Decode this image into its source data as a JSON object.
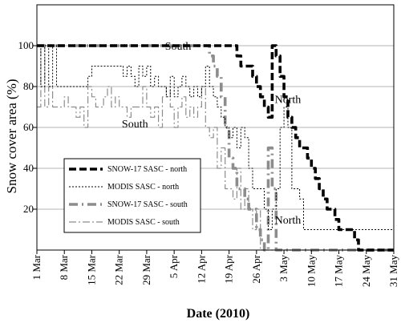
{
  "chart_data": {
    "type": "line",
    "xlabel": "Date (2010)",
    "ylabel": "Snow cover area (%)",
    "ylim": [
      0,
      120
    ],
    "yticks": [
      20,
      40,
      60,
      80,
      100
    ],
    "xlim": [
      "2010-03-01",
      "2010-05-31"
    ],
    "xticks": [
      "1 Mar",
      "8 Mar",
      "15 Mar",
      "22 Mar",
      "29 Mar",
      "5 Apr",
      "12 Apr",
      "19 Apr",
      "26 Apr",
      "3 May",
      "10 May",
      "17 May",
      "24 May",
      "31 May"
    ],
    "grid": "horizontal",
    "legend_position": "center-left",
    "annotations": [
      {
        "text": "South",
        "x": "2010-04-06",
        "y": 98
      },
      {
        "text": "South",
        "x": "2010-03-26",
        "y": 60
      },
      {
        "text": "North",
        "x": "2010-05-04",
        "y": 72
      },
      {
        "text": "North",
        "x": "2010-05-04",
        "y": 13
      }
    ],
    "series": [
      {
        "name": "SNOW-17 SASC - north",
        "color": "#000000",
        "x": [
          "2010-03-01",
          "2010-04-20",
          "2010-04-21",
          "2010-04-22",
          "2010-04-23",
          "2010-04-24",
          "2010-04-25",
          "2010-04-26",
          "2010-04-27",
          "2010-04-28",
          "2010-04-29",
          "2010-04-30",
          "2010-05-01",
          "2010-05-02",
          "2010-05-03",
          "2010-05-04",
          "2010-05-05",
          "2010-05-06",
          "2010-05-07",
          "2010-05-08",
          "2010-05-09",
          "2010-05-10",
          "2010-05-11",
          "2010-05-12",
          "2010-05-13",
          "2010-05-14",
          "2010-05-15",
          "2010-05-16",
          "2010-05-17",
          "2010-05-18",
          "2010-05-20",
          "2010-05-21",
          "2010-05-22",
          "2010-05-31"
        ],
        "y": [
          100,
          100,
          95,
          90,
          90,
          90,
          85,
          80,
          75,
          70,
          65,
          100,
          95,
          85,
          75,
          65,
          60,
          55,
          50,
          50,
          45,
          40,
          35,
          30,
          25,
          20,
          20,
          15,
          10,
          10,
          10,
          5,
          0,
          0
        ]
      },
      {
        "name": "MODIS SASC - north",
        "color": "#000000",
        "x": [
          "2010-03-01",
          "2010-03-02",
          "2010-03-03",
          "2010-03-04",
          "2010-03-05",
          "2010-03-06",
          "2010-03-12",
          "2010-03-13",
          "2010-03-14",
          "2010-03-15",
          "2010-03-16",
          "2010-03-22",
          "2010-03-23",
          "2010-03-24",
          "2010-03-25",
          "2010-03-26",
          "2010-03-27",
          "2010-03-28",
          "2010-03-29",
          "2010-03-30",
          "2010-03-31",
          "2010-04-01",
          "2010-04-02",
          "2010-04-03",
          "2010-04-04",
          "2010-04-05",
          "2010-04-06",
          "2010-04-07",
          "2010-04-08",
          "2010-04-09",
          "2010-04-10",
          "2010-04-11",
          "2010-04-12",
          "2010-04-13",
          "2010-04-14",
          "2010-04-15",
          "2010-04-16",
          "2010-04-17",
          "2010-04-18",
          "2010-04-19",
          "2010-04-20",
          "2010-04-21",
          "2010-04-22",
          "2010-04-23",
          "2010-04-24",
          "2010-04-25",
          "2010-04-26",
          "2010-04-27",
          "2010-04-28",
          "2010-04-29",
          "2010-04-30",
          "2010-05-01",
          "2010-05-02",
          "2010-05-03",
          "2010-05-04",
          "2010-05-05",
          "2010-05-06",
          "2010-05-07",
          "2010-05-08",
          "2010-05-09",
          "2010-05-10",
          "2010-05-11",
          "2010-05-12",
          "2010-05-13",
          "2010-05-14",
          "2010-05-15",
          "2010-05-16",
          "2010-05-17",
          "2010-05-31"
        ],
        "y": [
          100,
          80,
          100,
          80,
          100,
          80,
          80,
          80,
          85,
          90,
          90,
          90,
          85,
          90,
          85,
          80,
          90,
          85,
          90,
          80,
          85,
          80,
          80,
          75,
          85,
          75,
          80,
          85,
          80,
          75,
          80,
          75,
          80,
          90,
          80,
          75,
          70,
          65,
          60,
          55,
          60,
          50,
          60,
          55,
          40,
          30,
          30,
          30,
          20,
          10,
          20,
          30,
          60,
          70,
          60,
          30,
          30,
          25,
          10,
          10,
          10,
          10,
          10,
          10,
          10,
          10,
          10,
          10,
          10
        ]
      },
      {
        "name": "SNOW-17 SASC - south",
        "color": "#8c8c8c",
        "x": [
          "2010-03-01",
          "2010-04-12",
          "2010-04-13",
          "2010-04-14",
          "2010-04-15",
          "2010-04-16",
          "2010-04-17",
          "2010-04-18",
          "2010-04-19",
          "2010-04-20",
          "2010-04-21",
          "2010-04-22",
          "2010-04-23",
          "2010-04-24",
          "2010-04-25",
          "2010-04-26",
          "2010-04-27",
          "2010-04-28",
          "2010-04-29",
          "2010-04-30",
          "2010-05-01",
          "2010-05-02",
          "2010-05-03",
          "2010-05-04",
          "2010-05-31"
        ],
        "y": [
          100,
          100,
          100,
          95,
          90,
          85,
          75,
          60,
          45,
          40,
          30,
          30,
          25,
          20,
          20,
          10,
          5,
          0,
          50,
          30,
          0,
          0,
          0,
          0,
          0
        ]
      },
      {
        "name": "MODIS SASC - south",
        "color": "#8c8c8c",
        "x": [
          "2010-03-01",
          "2010-03-02",
          "2010-03-03",
          "2010-03-04",
          "2010-03-05",
          "2010-03-06",
          "2010-03-07",
          "2010-03-08",
          "2010-03-09",
          "2010-03-10",
          "2010-03-11",
          "2010-03-12",
          "2010-03-13",
          "2010-03-14",
          "2010-03-15",
          "2010-03-16",
          "2010-03-17",
          "2010-03-18",
          "2010-03-19",
          "2010-03-20",
          "2010-03-21",
          "2010-03-22",
          "2010-03-23",
          "2010-03-24",
          "2010-03-25",
          "2010-03-26",
          "2010-03-27",
          "2010-03-28",
          "2010-03-29",
          "2010-03-30",
          "2010-03-31",
          "2010-04-01",
          "2010-04-02",
          "2010-04-03",
          "2010-04-04",
          "2010-04-05",
          "2010-04-06",
          "2010-04-07",
          "2010-04-08",
          "2010-04-09",
          "2010-04-10",
          "2010-04-11",
          "2010-04-12",
          "2010-04-13",
          "2010-04-14",
          "2010-04-15",
          "2010-04-16",
          "2010-04-17",
          "2010-04-18",
          "2010-04-19",
          "2010-04-20",
          "2010-04-21",
          "2010-04-22",
          "2010-04-23",
          "2010-04-24",
          "2010-04-25",
          "2010-04-26",
          "2010-04-27",
          "2010-04-28",
          "2010-04-29",
          "2010-04-30",
          "2010-05-01",
          "2010-05-02",
          "2010-05-03",
          "2010-05-31"
        ],
        "y": [
          70,
          100,
          70,
          80,
          70,
          70,
          70,
          75,
          70,
          70,
          65,
          70,
          60,
          80,
          75,
          70,
          70,
          75,
          80,
          70,
          75,
          70,
          70,
          65,
          70,
          70,
          70,
          80,
          70,
          65,
          70,
          60,
          75,
          80,
          70,
          60,
          70,
          75,
          65,
          70,
          65,
          70,
          80,
          60,
          55,
          60,
          40,
          50,
          30,
          30,
          25,
          40,
          20,
          30,
          20,
          10,
          20,
          0,
          0,
          0,
          0,
          0,
          0,
          0,
          0
        ]
      }
    ]
  }
}
